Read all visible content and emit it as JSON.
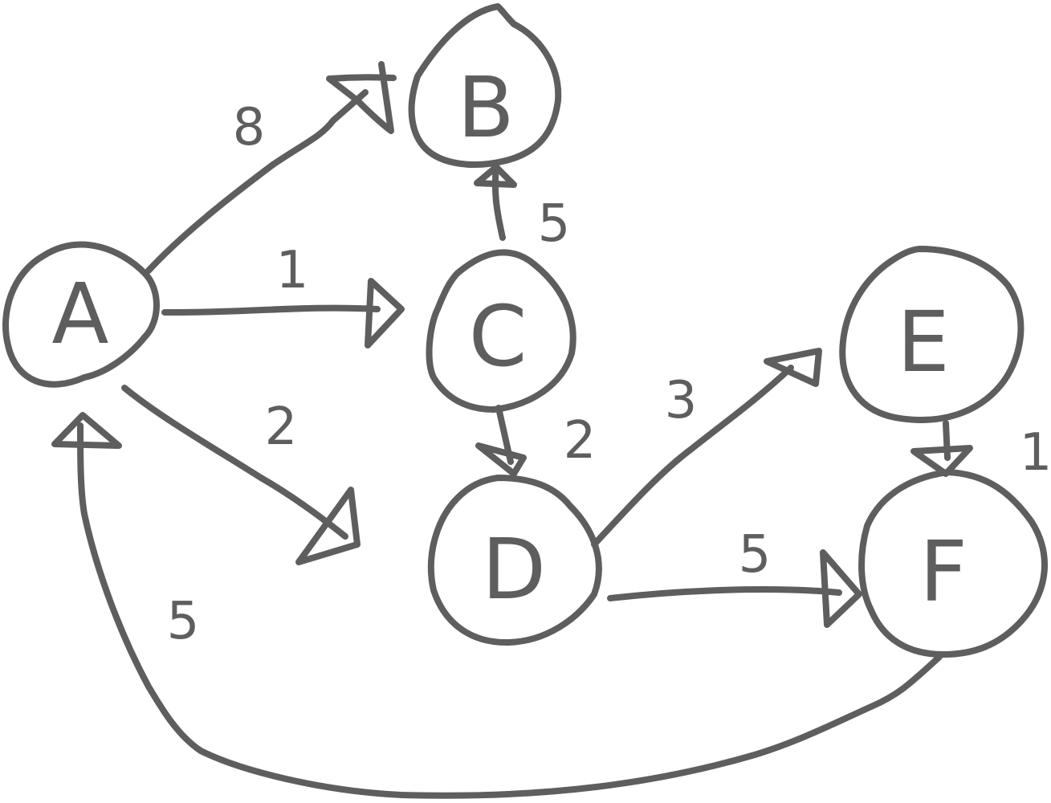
{
  "graph": {
    "nodes": [
      {
        "id": "A",
        "label": "A"
      },
      {
        "id": "B",
        "label": "B"
      },
      {
        "id": "C",
        "label": "C"
      },
      {
        "id": "D",
        "label": "D"
      },
      {
        "id": "E",
        "label": "E"
      },
      {
        "id": "F",
        "label": "F"
      }
    ],
    "edges": [
      {
        "from": "A",
        "to": "B",
        "weight": "8"
      },
      {
        "from": "A",
        "to": "C",
        "weight": "1"
      },
      {
        "from": "A",
        "to": "D",
        "weight": "2"
      },
      {
        "from": "C",
        "to": "B",
        "weight": "5"
      },
      {
        "from": "C",
        "to": "D",
        "weight": "2"
      },
      {
        "from": "D",
        "to": "E",
        "weight": "3"
      },
      {
        "from": "D",
        "to": "F",
        "weight": "5"
      },
      {
        "from": "E",
        "to": "F",
        "weight": "1"
      },
      {
        "from": "F",
        "to": "A",
        "weight": "5"
      }
    ]
  },
  "style": {
    "stroke_color": "#5e5e5e",
    "background": "#ffffff"
  }
}
